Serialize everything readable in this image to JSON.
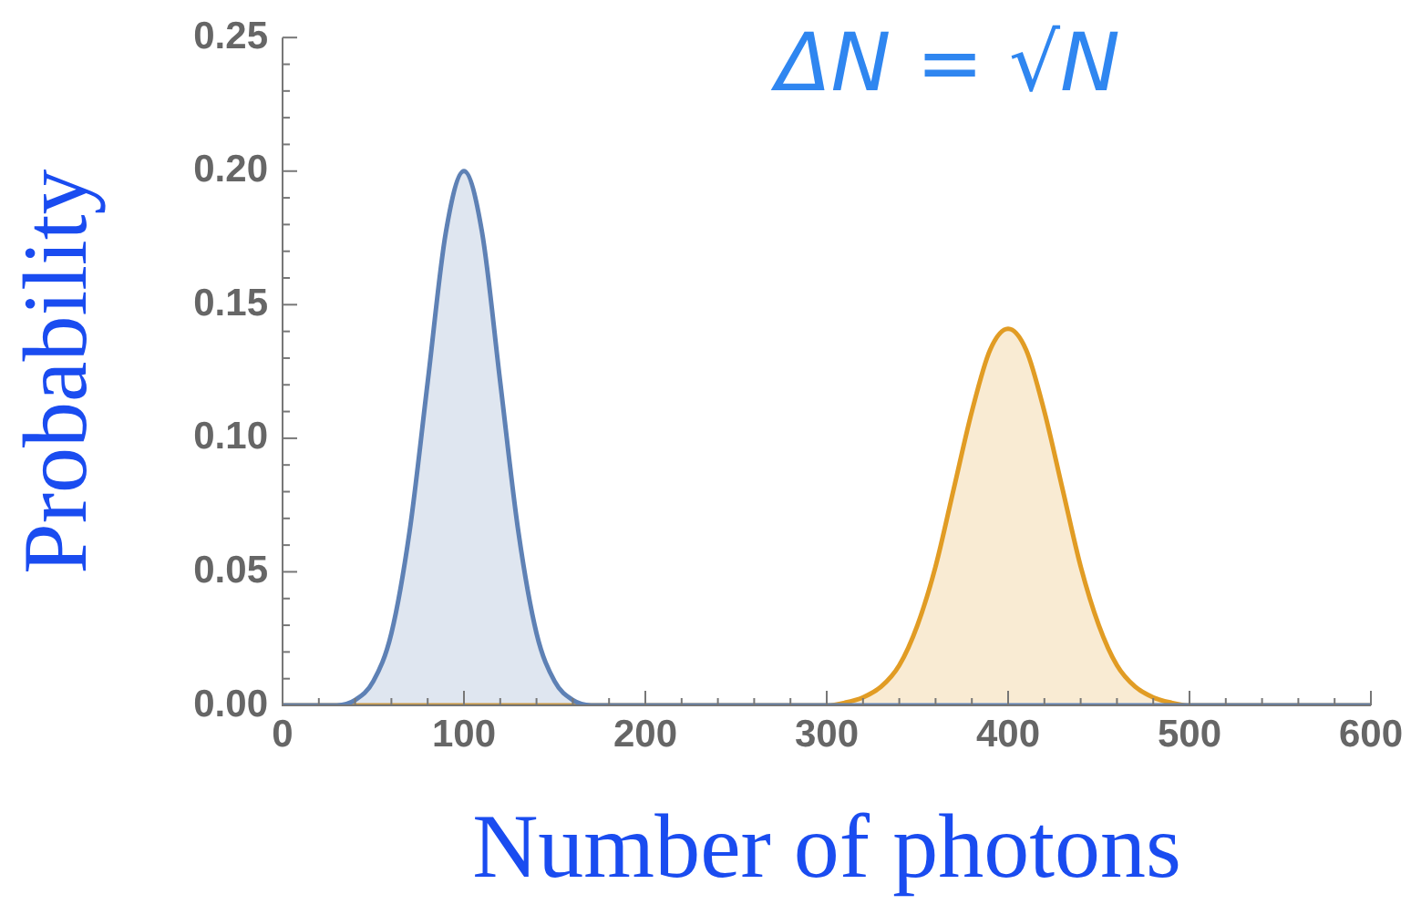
{
  "chart_data": {
    "type": "area",
    "xlabel": "Number of photons",
    "ylabel": "Probability",
    "annotations": [
      "ΔN = √N"
    ],
    "xlim": [
      0,
      600
    ],
    "ylim": [
      0,
      0.25
    ],
    "xticks": [
      0,
      {
        "value": 20,
        "label": null
      },
      {
        "value": 40,
        "label": null
      },
      {
        "value": 60,
        "label": null
      },
      {
        "value": 80,
        "label": null
      },
      100,
      {
        "value": 120,
        "label": null
      },
      {
        "value": 140,
        "label": null
      },
      {
        "value": 160,
        "label": null
      },
      {
        "value": 180,
        "label": null
      },
      200,
      {
        "value": 220,
        "label": null
      },
      {
        "value": 240,
        "label": null
      },
      {
        "value": 260,
        "label": null
      },
      {
        "value": 280,
        "label": null
      },
      300,
      {
        "value": 320,
        "label": null
      },
      {
        "value": 340,
        "label": null
      },
      {
        "value": 360,
        "label": null
      },
      {
        "value": 380,
        "label": null
      },
      400,
      {
        "value": 420,
        "label": null
      },
      {
        "value": 440,
        "label": null
      },
      {
        "value": 460,
        "label": null
      },
      {
        "value": 480,
        "label": null
      },
      500,
      {
        "value": 520,
        "label": null
      },
      {
        "value": 540,
        "label": null
      },
      {
        "value": 560,
        "label": null
      },
      {
        "value": 580,
        "label": null
      },
      600
    ],
    "yticks": [
      {
        "value": 0,
        "label": "0.00"
      },
      {
        "value": 0.01,
        "label": null
      },
      {
        "value": 0.02,
        "label": null
      },
      {
        "value": 0.03,
        "label": null
      },
      {
        "value": 0.04,
        "label": null
      },
      0.05,
      {
        "value": 0.06,
        "label": null
      },
      {
        "value": 0.07,
        "label": null
      },
      {
        "value": 0.08,
        "label": null
      },
      {
        "value": 0.09,
        "label": null
      },
      {
        "value": 0.1,
        "label": "0.10"
      },
      {
        "value": 0.11,
        "label": null
      },
      {
        "value": 0.12,
        "label": null
      },
      {
        "value": 0.13,
        "label": null
      },
      {
        "value": 0.14,
        "label": null
      },
      0.15,
      {
        "value": 0.16,
        "label": null
      },
      {
        "value": 0.17,
        "label": null
      },
      {
        "value": 0.18,
        "label": null
      },
      {
        "value": 0.19,
        "label": null
      },
      {
        "value": 0.2,
        "label": "0.20"
      },
      {
        "value": 0.21,
        "label": null
      },
      {
        "value": 0.22,
        "label": null
      },
      {
        "value": 0.23,
        "label": null
      },
      {
        "value": 0.24,
        "label": null
      },
      0.25
    ],
    "grid": false,
    "series": [
      {
        "color": "#5e81b5",
        "x": [
          0,
          30,
          40,
          50,
          60,
          70,
          80,
          90,
          100,
          110,
          120,
          130,
          140,
          150,
          160,
          170,
          600
        ],
        "values": [
          0,
          0,
          0.002,
          0.009,
          0.027,
          0.065,
          0.121,
          0.177,
          0.2,
          0.177,
          0.121,
          0.065,
          0.027,
          0.009,
          0.002,
          0,
          0
        ]
      },
      {
        "color": "#e19c24",
        "x": [
          0,
          300,
          310,
          320,
          330,
          340,
          350,
          360,
          370,
          380,
          390,
          400,
          410,
          420,
          430,
          440,
          450,
          460,
          470,
          480,
          490,
          500,
          600
        ],
        "values": [
          0,
          0,
          0.001,
          0.003,
          0.007,
          0.015,
          0.03,
          0.052,
          0.081,
          0.11,
          0.133,
          0.141,
          0.133,
          0.11,
          0.081,
          0.052,
          0.03,
          0.015,
          0.007,
          0.003,
          0.001,
          0,
          0
        ]
      }
    ]
  }
}
